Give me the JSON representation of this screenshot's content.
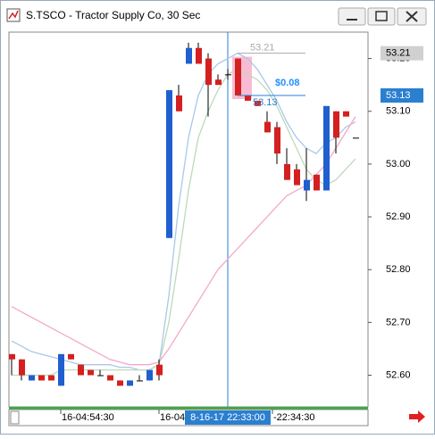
{
  "window": {
    "title": "S.TSCO - Tractor Supply Co, 30 Sec"
  },
  "chart_data": {
    "type": "candlestick",
    "open": [
      52.64,
      52.63,
      52.59,
      52.6,
      52.6,
      52.58,
      52.64,
      52.62,
      52.61,
      52.6,
      52.6,
      52.59,
      52.58,
      52.59,
      52.59,
      52.62,
      52.86,
      53.13,
      53.19,
      53.22,
      53.2,
      53.16,
      53.17,
      53.2,
      53.13,
      53.12,
      53.08,
      53.07,
      53.0,
      52.99,
      52.95,
      52.98,
      52.95,
      53.1,
      53.1,
      53.05
    ],
    "high": [
      52.64,
      52.63,
      52.6,
      52.6,
      52.6,
      52.64,
      52.64,
      52.62,
      52.61,
      52.61,
      52.6,
      52.59,
      52.59,
      52.6,
      52.61,
      52.63,
      53.14,
      53.15,
      53.23,
      53.23,
      53.21,
      53.17,
      53.18,
      53.2,
      53.13,
      53.12,
      53.1,
      53.08,
      53.03,
      53.0,
      53.03,
      52.98,
      53.11,
      53.1,
      53.1,
      53.05
    ],
    "low": [
      52.6,
      52.59,
      52.59,
      52.59,
      52.59,
      52.58,
      52.63,
      52.6,
      52.6,
      52.6,
      52.59,
      52.58,
      52.58,
      52.59,
      52.59,
      52.59,
      52.86,
      53.1,
      53.19,
      53.19,
      53.09,
      53.15,
      53.16,
      53.13,
      53.12,
      53.11,
      53.06,
      53.0,
      52.97,
      52.96,
      52.93,
      52.95,
      52.95,
      53.02,
      53.09,
      53.05
    ],
    "close": [
      52.63,
      52.6,
      52.6,
      52.59,
      52.59,
      52.64,
      52.63,
      52.6,
      52.6,
      52.6,
      52.59,
      52.58,
      52.59,
      52.59,
      52.61,
      52.6,
      53.14,
      53.1,
      53.22,
      53.19,
      53.15,
      53.15,
      53.17,
      53.13,
      53.12,
      53.11,
      53.06,
      53.02,
      52.97,
      52.96,
      52.97,
      52.95,
      53.11,
      53.05,
      53.09,
      53.05
    ],
    "up_color": "#1f5fd0",
    "down_color": "#d42020",
    "flat_color": "#000000",
    "series": [
      {
        "color": "#a9c8e8",
        "values": [
          52.665,
          52.655,
          52.645,
          52.64,
          52.635,
          52.63,
          52.625,
          52.62,
          52.62,
          52.62,
          52.62,
          52.615,
          52.615,
          52.61,
          52.61,
          52.62,
          52.75,
          52.92,
          53.05,
          53.13,
          53.17,
          53.19,
          53.2,
          53.21,
          53.2,
          53.18,
          53.15,
          53.12,
          53.08,
          53.05,
          53.03,
          53.02,
          53.04,
          53.05,
          53.07,
          53.08
        ]
      },
      {
        "color": "#bcd9bc",
        "values": [
          52.6,
          52.6,
          52.6,
          52.6,
          52.6,
          52.61,
          52.61,
          52.61,
          52.61,
          52.61,
          52.61,
          52.61,
          52.61,
          52.61,
          52.61,
          52.62,
          52.7,
          52.82,
          52.95,
          53.05,
          53.1,
          53.14,
          53.17,
          53.18,
          53.17,
          53.16,
          53.14,
          53.11,
          53.07,
          53.03,
          52.99,
          52.97,
          52.96,
          52.97,
          52.99,
          53.01
        ]
      },
      {
        "color": "#f4a8c8",
        "values": [
          52.73,
          52.72,
          52.71,
          52.7,
          52.69,
          52.68,
          52.67,
          52.66,
          52.65,
          52.64,
          52.63,
          52.625,
          52.62,
          52.62,
          52.62,
          52.625,
          52.65,
          52.68,
          52.71,
          52.74,
          52.77,
          52.8,
          52.82,
          52.84,
          52.86,
          52.88,
          52.9,
          52.92,
          52.94,
          52.95,
          52.96,
          52.98,
          53.0,
          53.03,
          53.06,
          53.09
        ]
      }
    ],
    "ylim": [
      52.54,
      53.25
    ],
    "yticks": [
      {
        "value": 52.6,
        "label": "52.60"
      },
      {
        "value": 52.7,
        "label": "52.70"
      },
      {
        "value": 52.8,
        "label": "52.80"
      },
      {
        "value": 52.9,
        "label": "52.90"
      },
      {
        "value": 53.0,
        "label": "53.00"
      },
      {
        "value": 53.1,
        "label": "53.10"
      },
      {
        "value": 53.2,
        "label": "53.20"
      }
    ],
    "x_labels": [
      "16-04:54:30",
      "16-04",
      "-22:34:30"
    ],
    "crosshair_label": "8-16-17 22:33:00",
    "crosshair_index": 22,
    "selected_candle": 23,
    "measure": {
      "start": 53.21,
      "end": 53.13,
      "change_label": "$0.08"
    },
    "price_tags": [
      53.21,
      53.13
    ]
  }
}
